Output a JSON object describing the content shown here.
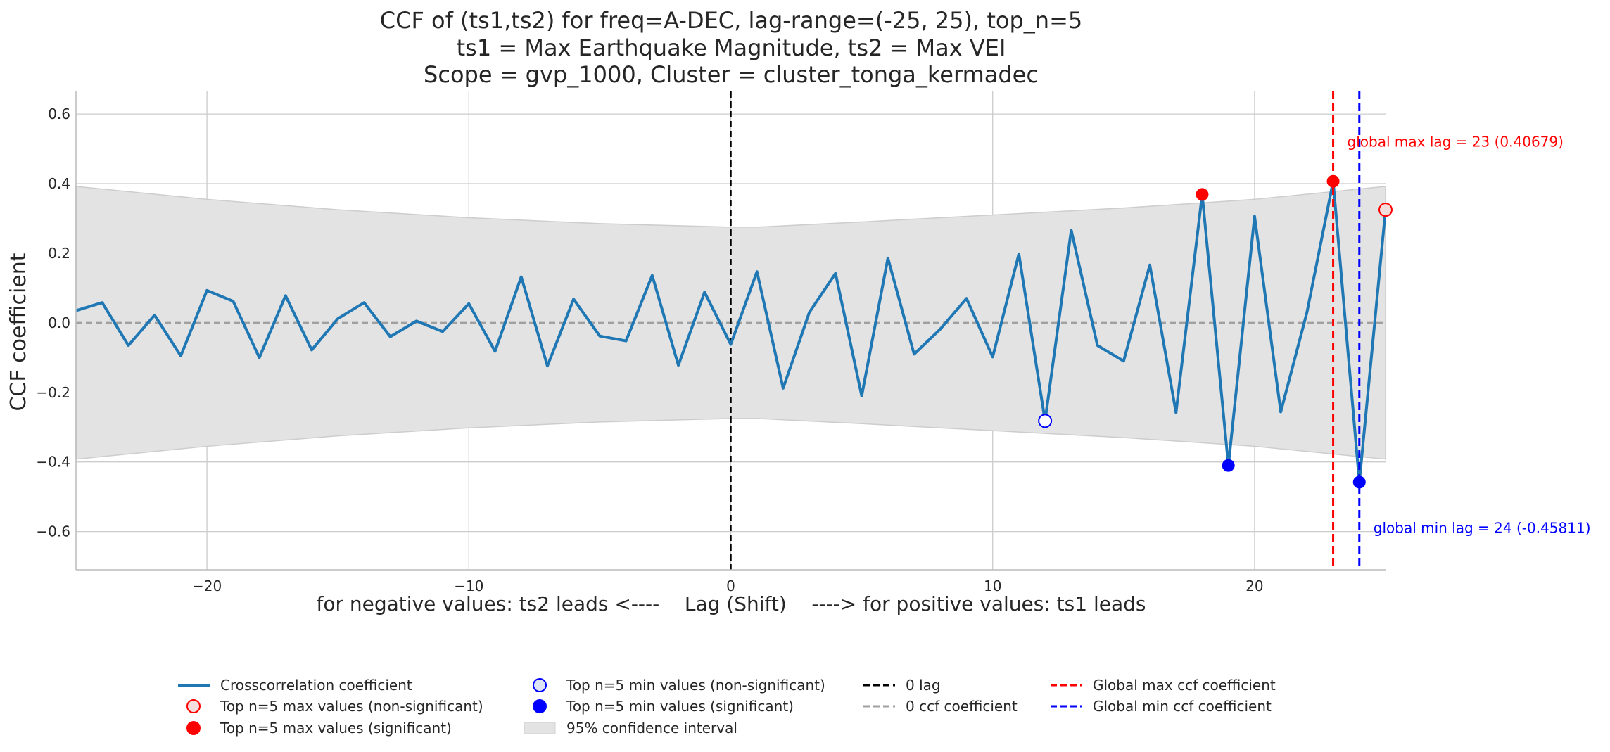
{
  "chart_data": {
    "type": "line",
    "title_lines": [
      "CCF of (ts1,ts2) for freq=A-DEC, lag-range=(-25, 25), top_n=5",
      "ts1 = Max Earthquake Magnitude, ts2 = Max VEI",
      "Scope = gvp_1000, Cluster = cluster_tonga_kermadec"
    ],
    "xlabel": "for negative values: ts2 leads <----    Lag (Shift)    ----> for positive values: ts1 leads",
    "ylabel": "CCF coefficient",
    "xlim": [
      -25,
      25
    ],
    "ylim": [
      -0.71,
      0.665
    ],
    "xticks": [
      -20,
      -10,
      0,
      10,
      20
    ],
    "xtick_labels": [
      "−20",
      "−10",
      "0",
      "10",
      "20"
    ],
    "yticks": [
      -0.6,
      -0.4,
      -0.2,
      0.0,
      0.2,
      0.4,
      0.6
    ],
    "ytick_labels": [
      "−0.6",
      "−0.4",
      "−0.2",
      "0.0",
      "0.2",
      "0.4",
      "0.6"
    ],
    "grid": true,
    "legend_position": "bottom",
    "colors": {
      "series": "#1f77b4",
      "max_marker": "#ff0000",
      "min_marker": "#0000ff",
      "ci_fill": "#e3e3e3",
      "zero_lag": "#000000",
      "zero_ccf": "#a0a0a0"
    },
    "series": [
      {
        "name": "Crosscorrelation coefficient",
        "x": [
          -25,
          -24,
          -23,
          -22,
          -21,
          -20,
          -19,
          -18,
          -17,
          -16,
          -15,
          -14,
          -13,
          -12,
          -11,
          -10,
          -9,
          -8,
          -7,
          -6,
          -5,
          -4,
          -3,
          -2,
          -1,
          0,
          1,
          2,
          3,
          4,
          5,
          6,
          7,
          8,
          9,
          10,
          11,
          12,
          13,
          14,
          15,
          16,
          17,
          18,
          19,
          20,
          21,
          22,
          23,
          24,
          25
        ],
        "y": [
          0.035,
          0.058,
          -0.065,
          0.022,
          -0.095,
          0.093,
          0.062,
          -0.1,
          0.078,
          -0.078,
          0.012,
          0.058,
          -0.04,
          0.005,
          -0.025,
          0.055,
          -0.082,
          0.132,
          -0.124,
          0.068,
          -0.038,
          -0.052,
          0.136,
          -0.122,
          0.088,
          -0.062,
          0.147,
          -0.188,
          0.03,
          0.142,
          -0.21,
          0.186,
          -0.09,
          -0.018,
          0.07,
          -0.098,
          0.198,
          -0.282,
          0.266,
          -0.065,
          -0.11,
          0.166,
          -0.258,
          0.369,
          -0.41,
          0.306,
          -0.256,
          0.03,
          0.40679,
          -0.45811,
          0.325
        ]
      }
    ],
    "confidence_interval": {
      "name": "95% confidence interval",
      "x": [
        -25,
        -20,
        -15,
        -10,
        -5,
        0,
        1,
        5,
        10,
        15,
        20,
        25
      ],
      "upper": [
        0.392,
        0.355,
        0.325,
        0.302,
        0.285,
        0.275,
        0.275,
        0.29,
        0.31,
        0.33,
        0.355,
        0.392
      ],
      "lower": [
        -0.392,
        -0.355,
        -0.325,
        -0.302,
        -0.285,
        -0.275,
        -0.275,
        -0.29,
        -0.31,
        -0.33,
        -0.355,
        -0.392
      ]
    },
    "markers": {
      "max_significant": {
        "name": "Top n=5 max values (significant)",
        "x": [
          18,
          23
        ],
        "y": [
          0.369,
          0.40679
        ]
      },
      "max_nonsignificant": {
        "name": "Top n=5 max values (non-significant)",
        "x": [
          25
        ],
        "y": [
          0.325
        ]
      },
      "min_significant": {
        "name": "Top n=5 min values (significant)",
        "x": [
          19,
          24
        ],
        "y": [
          -0.41,
          -0.45811
        ]
      },
      "min_nonsignificant": {
        "name": "Top n=5 min values (non-significant)",
        "x": [
          12
        ],
        "y": [
          -0.282
        ]
      }
    },
    "reference_lines": {
      "zero_lag": {
        "name": "0 lag",
        "x": 0
      },
      "zero_ccf": {
        "name": "0 ccf coefficient",
        "y": 0
      },
      "global_max": {
        "name": "Global max ccf coefficient",
        "x": 23
      },
      "global_min": {
        "name": "Global min ccf coefficient",
        "x": 24
      }
    },
    "annotations": [
      {
        "text": "global max lag = 23 (0.40679)",
        "x": 23,
        "y": 0.52,
        "color": "#ff0000"
      },
      {
        "text": "global min lag = 24 (-0.45811)",
        "x": 24,
        "y": -0.59,
        "color": "#0000ff"
      }
    ],
    "legend": [
      [
        "Crosscorrelation coefficient",
        "Top n=5 max values (non-significant)",
        "Top n=5 max values (significant)"
      ],
      [
        "Top n=5 min values (non-significant)",
        "Top n=5 min values (significant)",
        "95% confidence interval"
      ],
      [
        "0 lag",
        "0 ccf coefficient"
      ],
      [
        "Global max ccf coefficient",
        "Global min ccf coefficient"
      ]
    ]
  }
}
